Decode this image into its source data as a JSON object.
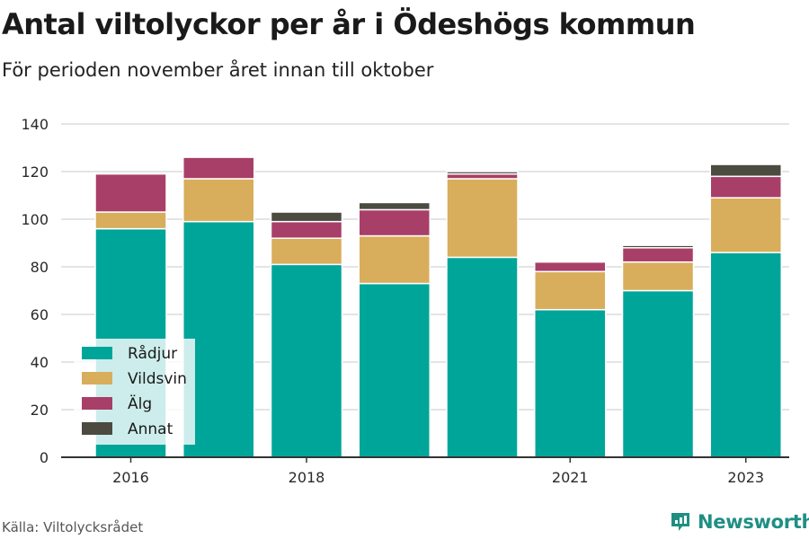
{
  "title": "Antal viltolyckor per år i Ödeshögs kommun",
  "subtitle": "För perioden november året innan till oktober",
  "source": "Källa: Viltolycksrådet",
  "brand": {
    "name": "Newsworthy",
    "icon": "newsworthy-logo-icon"
  },
  "colors": {
    "Rådjur": "#00a59a",
    "Vildsvin": "#d8ad5c",
    "Älg": "#a83f68",
    "Annat": "#4b4b40"
  },
  "chart_data": {
    "type": "bar",
    "stacked": true,
    "title": "Antal viltolyckor per år i Ödeshögs kommun",
    "subtitle": "För perioden november året innan till oktober",
    "categories": [
      "2016",
      "2017",
      "2018",
      "2019",
      "2020",
      "2021",
      "2022",
      "2023"
    ],
    "x_tick_labels": [
      "2016",
      "",
      "2018",
      "",
      "",
      "2021",
      "",
      "2023"
    ],
    "y_ticks": [
      0,
      20,
      40,
      60,
      80,
      100,
      120,
      140
    ],
    "ylim": [
      0,
      140
    ],
    "grid": true,
    "legend_position": "bottom-left",
    "series": [
      {
        "name": "Rådjur",
        "values": [
          96,
          99,
          81,
          73,
          84,
          62,
          70,
          86
        ]
      },
      {
        "name": "Vildsvin",
        "values": [
          7,
          18,
          11,
          20,
          33,
          16,
          12,
          23
        ]
      },
      {
        "name": "Älg",
        "values": [
          16,
          9,
          7,
          11,
          2,
          4,
          6,
          9
        ]
      },
      {
        "name": "Annat",
        "values": [
          0,
          0,
          4,
          3,
          1,
          0,
          1,
          5
        ]
      }
    ]
  }
}
